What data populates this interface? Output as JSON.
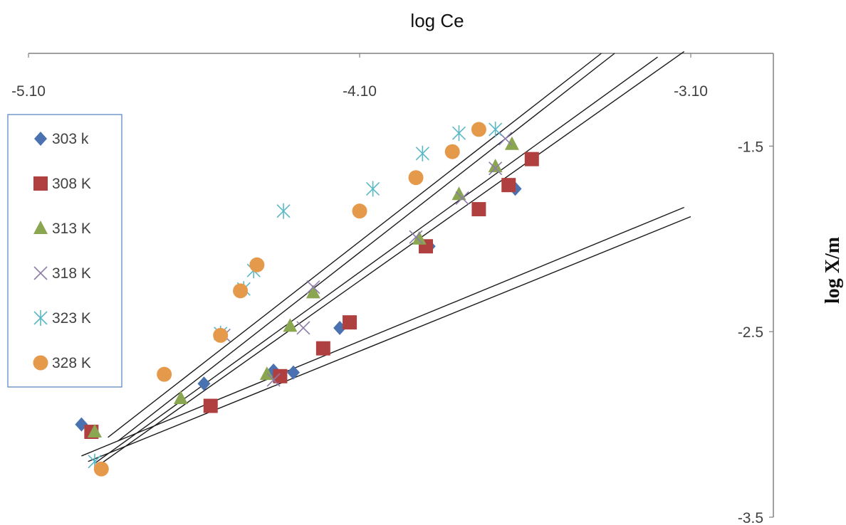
{
  "chart_data": {
    "type": "scatter",
    "title": "",
    "xlabel": "log Ce",
    "ylabel": "log X/m",
    "x_axis_position": "top",
    "y_axis_position": "right",
    "xlim": [
      -5.1,
      -3.1
    ],
    "ylim": [
      -3.5,
      -1.0
    ],
    "x_tick_labels": [
      "-5.10",
      "-4.10",
      "-3.10"
    ],
    "x_ticks": [
      -5.1,
      -4.1,
      -3.1
    ],
    "y_tick_labels": [
      "-1.5",
      "-2.5",
      "-3.5"
    ],
    "y_ticks": [
      -1.5,
      -2.5,
      -3.5
    ],
    "legend_position": "left",
    "series": [
      {
        "name": "303 k",
        "marker": "diamond",
        "color": "#4a72b0",
        "x": [
          -4.94,
          -4.57,
          -4.36,
          -4.3,
          -4.16,
          -3.89,
          -3.63
        ],
        "y": [
          -3.0,
          -2.78,
          -2.71,
          -2.72,
          -2.48,
          -2.04,
          -1.73
        ],
        "fit": {
          "x": [
            -4.92,
            -3.1
          ],
          "y": [
            -3.2,
            -1.88
          ]
        }
      },
      {
        "name": "308 K",
        "marker": "square",
        "color": "#b04040",
        "x": [
          -4.91,
          -4.55,
          -4.34,
          -4.21,
          -4.13,
          -3.9,
          -3.74,
          -3.65,
          -3.58
        ],
        "y": [
          -3.04,
          -2.9,
          -2.74,
          -2.59,
          -2.45,
          -2.04,
          -1.84,
          -1.71,
          -1.57
        ],
        "fit": {
          "x": [
            -4.94,
            -3.12
          ],
          "y": [
            -3.17,
            -1.83
          ]
        }
      },
      {
        "name": "313 K",
        "marker": "triangle",
        "color": "#8aa650",
        "x": [
          -4.9,
          -4.64,
          -4.38,
          -4.31,
          -4.24,
          -3.92,
          -3.8,
          -3.69,
          -3.64
        ],
        "y": [
          -3.04,
          -2.86,
          -2.73,
          -2.47,
          -2.29,
          -2.0,
          -1.76,
          -1.61,
          -1.49
        ],
        "fit": {
          "x": [
            -4.9,
            -3.2
          ],
          "y": [
            -3.21,
            -1.02
          ]
        }
      },
      {
        "name": "318 K",
        "marker": "x",
        "color": "#8c7bab",
        "x": [
          -4.51,
          -4.36,
          -4.27,
          -4.24,
          -3.93,
          -3.79,
          -3.69,
          -3.66
        ],
        "y": [
          -2.52,
          -2.76,
          -2.48,
          -2.26,
          -1.99,
          -1.78,
          -1.62,
          -1.46
        ],
        "fit": {
          "x": [
            -4.88,
            -3.12
          ],
          "y": [
            -3.21,
            -0.99
          ]
        }
      },
      {
        "name": "323 K",
        "marker": "asterisk",
        "color": "#5bb8c6",
        "x": [
          -4.9,
          -4.52,
          -4.45,
          -4.42,
          -4.33,
          -4.06,
          -3.91,
          -3.8,
          -3.69
        ],
        "y": [
          -3.2,
          -2.51,
          -2.27,
          -2.17,
          -1.85,
          -1.73,
          -1.54,
          -1.43,
          -1.41
        ],
        "fit": {
          "x": [
            -4.83,
            -3.33
          ],
          "y": [
            -3.09,
            -1.0
          ]
        }
      },
      {
        "name": "328 K",
        "marker": "circle",
        "color": "#e59a4b",
        "x": [
          -4.88,
          -4.69,
          -4.52,
          -4.46,
          -4.41,
          -4.1,
          -3.93,
          -3.82,
          -3.74
        ],
        "y": [
          -3.24,
          -2.73,
          -2.52,
          -2.28,
          -2.14,
          -1.85,
          -1.67,
          -1.53,
          -1.41
        ],
        "fit": {
          "x": [
            -4.86,
            -3.37
          ],
          "y": [
            -3.07,
            -1.0
          ]
        }
      }
    ]
  }
}
